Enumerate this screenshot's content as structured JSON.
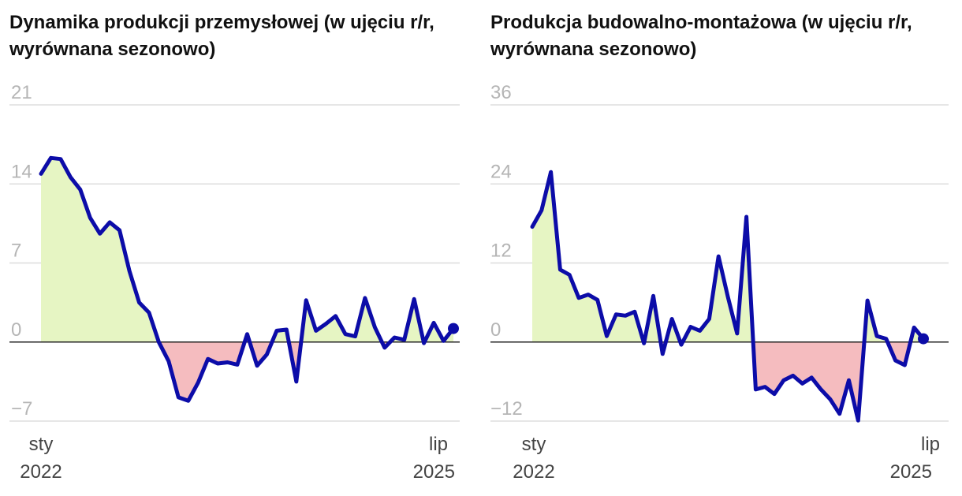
{
  "colors": {
    "line": "#0c0ca8",
    "positive_fill": "#e6f5c3",
    "negative_fill": "#f5bcbf",
    "grid": "#dddddd",
    "zero_line": "#222222",
    "tick_text": "#b5b5b5",
    "axis_text": "#444444"
  },
  "chart_data": [
    {
      "type": "area",
      "title": "Dynamika produkcji przemysłowej (w ujęciu r/r, wyrównana sezonowo)",
      "xlabel": "",
      "ylabel": "",
      "x_ticks": [
        {
          "line1": "sty",
          "line2": "2022"
        },
        {
          "line1": "lip",
          "line2": "2025"
        }
      ],
      "y_ticks": [
        21,
        14,
        7,
        0,
        -7
      ],
      "y_tick_labels": [
        "21",
        "14",
        "7",
        "0",
        "−7"
      ],
      "ylim": [
        -7,
        21
      ],
      "x_start": "2022-01",
      "x_end": "2025-07",
      "grid": true,
      "end_marker": true,
      "values": [
        14.9,
        16.3,
        16.2,
        14.6,
        13.5,
        11.0,
        9.6,
        10.6,
        9.9,
        6.3,
        3.5,
        2.6,
        0.0,
        -1.7,
        -4.9,
        -5.2,
        -3.6,
        -1.5,
        -1.9,
        -1.8,
        -2.0,
        0.7,
        -2.1,
        -1.1,
        1.0,
        1.1,
        -3.5,
        3.7,
        1.0,
        1.6,
        2.3,
        0.7,
        0.5,
        3.9,
        1.3,
        -0.5,
        0.4,
        0.2,
        3.8,
        -0.1,
        1.7,
        0.1,
        1.2
      ]
    },
    {
      "type": "area",
      "title": "Produkcja budowalno-montażowa (w ujęciu r/r, wyrównana sezonowo)",
      "xlabel": "",
      "ylabel": "",
      "x_ticks": [
        {
          "line1": "sty",
          "line2": "2022"
        },
        {
          "line1": "lip",
          "line2": "2025"
        }
      ],
      "y_ticks": [
        36,
        24,
        12,
        0,
        -12
      ],
      "y_tick_labels": [
        "36",
        "24",
        "12",
        "0",
        "−12"
      ],
      "ylim": [
        -12,
        36
      ],
      "x_start": "2022-01",
      "x_end": "2025-07",
      "grid": true,
      "end_marker": true,
      "values": [
        17.5,
        20.0,
        25.8,
        11.0,
        10.2,
        6.7,
        7.2,
        6.4,
        0.9,
        4.2,
        4.0,
        4.6,
        -0.2,
        7.0,
        -1.8,
        3.5,
        -0.4,
        2.3,
        1.7,
        3.5,
        13.0,
        6.9,
        1.3,
        19.0,
        -7.2,
        -6.8,
        -7.9,
        -5.8,
        -5.1,
        -6.3,
        -5.4,
        -7.2,
        -8.7,
        -10.9,
        -5.8,
        -11.9,
        6.3,
        0.9,
        0.5,
        -2.8,
        -3.5,
        2.2,
        0.5
      ]
    }
  ]
}
